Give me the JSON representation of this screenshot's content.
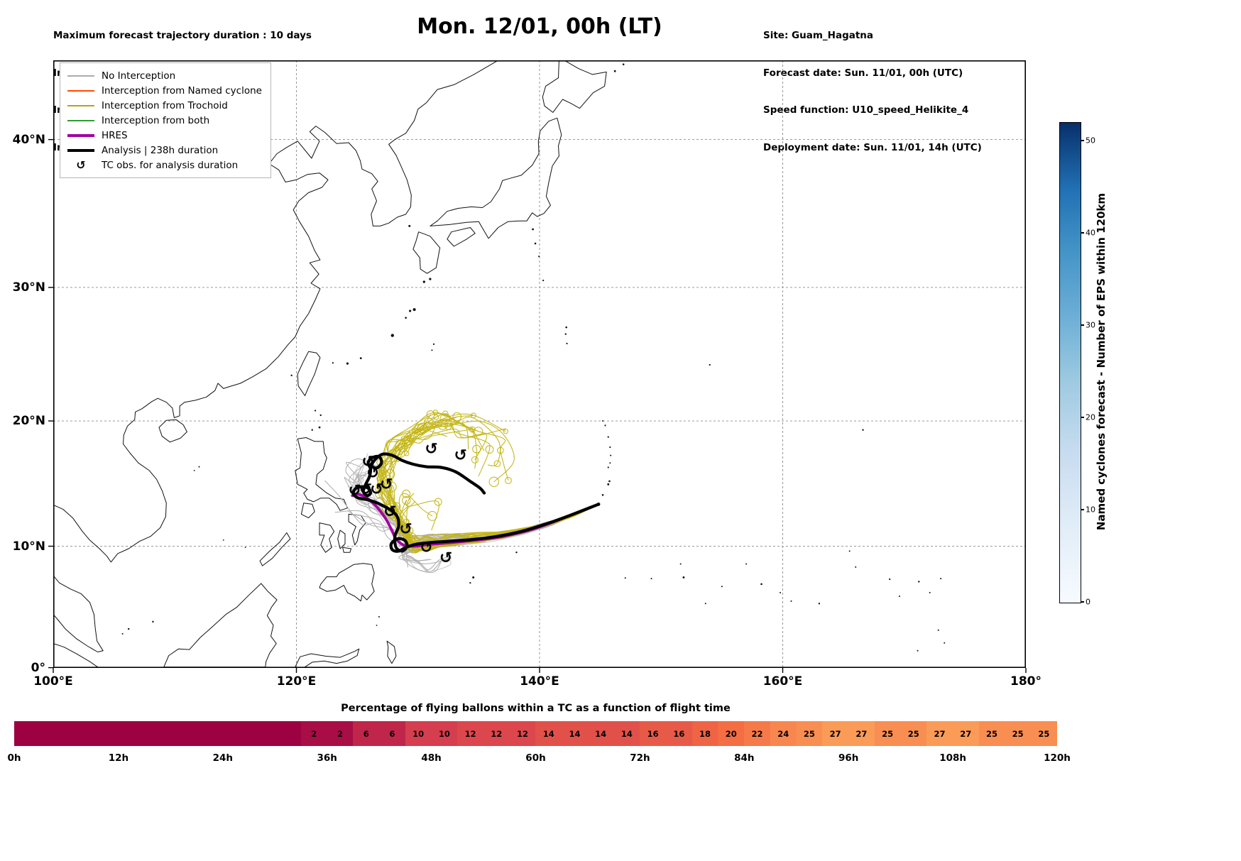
{
  "header": {
    "left_lines": [
      "Maximum forecast trajectory duration : 10 days",
      "Intercept distance: 300km",
      "Intercept RW2 (EPS):  30km/h2",
      "Intercept RW2 (HRES): 30km/h2"
    ],
    "title": "Mon. 12/01, 00h (LT)",
    "right_lines": [
      "Site: Guam_Hagatna",
      "Forecast date: Sun. 11/01, 00h (UTC)",
      "Speed function: U10_speed_Helikite_4",
      "Deployment date: Sun. 11/01, 14h (UTC)"
    ]
  },
  "legend": {
    "items": [
      {
        "label": "No Interception",
        "color": "#ababab",
        "style": "thin"
      },
      {
        "label": "Interception from Named cyclone",
        "color": "#ff4c00",
        "style": "thin"
      },
      {
        "label": "Interception from Trochoid",
        "color": "#b3a514",
        "style": "thin"
      },
      {
        "label": "Interception from both",
        "color": "#2e9e2e",
        "style": "thin"
      },
      {
        "label": "HRES",
        "color": "#a100a1",
        "style": "thick"
      },
      {
        "label": "Analysis | 238h duration",
        "color": "#000000",
        "style": "thick"
      },
      {
        "label": "TC obs. for analysis duration",
        "symbol": "↺",
        "style": "symbol"
      }
    ]
  },
  "axes": {
    "x_ticks": [
      {
        "v": 100,
        "label": "100°E"
      },
      {
        "v": 120,
        "label": "120°E"
      },
      {
        "v": 140,
        "label": "140°E"
      },
      {
        "v": 160,
        "label": "160°E"
      },
      {
        "v": 180,
        "label": "180°"
      }
    ],
    "y_ticks": [
      {
        "v": 0,
        "label": "0°"
      },
      {
        "v": 10,
        "label": "10°N"
      },
      {
        "v": 20,
        "label": "20°N"
      },
      {
        "v": 30,
        "label": "30°N"
      },
      {
        "v": 40,
        "label": "40°N"
      }
    ]
  },
  "colorbar": {
    "title": "Named cyclones forecast - Number of EPS within 120km",
    "ticks": [
      0,
      10,
      20,
      30,
      40,
      50
    ],
    "vmin": 0,
    "vmax": 52,
    "color_low": "#f7fbff",
    "color_high": "#08306b"
  },
  "flight_bar": {
    "title": "Percentage of flying ballons within a TC as a function of flight time",
    "x_ticks": [
      "0h",
      "12h",
      "24h",
      "36h",
      "48h",
      "60h",
      "72h",
      "84h",
      "96h",
      "108h",
      "120h"
    ],
    "scale": [
      {
        "v": 0,
        "c": "#9e0142"
      },
      {
        "v": 10,
        "c": "#d53e4f"
      },
      {
        "v": 20,
        "c": "#f46d43"
      },
      {
        "v": 30,
        "c": "#fdae61"
      }
    ]
  },
  "chart_data": {
    "type": "trajectory-map",
    "projection": "mercator",
    "lon_range": [
      100,
      180
    ],
    "lat_range": [
      0,
      45
    ],
    "grid": true,
    "site": {
      "name": "Guam_Hagatna",
      "lon": 144.85,
      "lat": 13.4
    },
    "analysis_duration_h": 238,
    "analysis_track": [
      [
        144.85,
        13.4
      ],
      [
        142.5,
        12.5
      ],
      [
        140.5,
        11.8
      ],
      [
        138.5,
        11.2
      ],
      [
        136.5,
        10.8
      ],
      [
        134.5,
        10.55
      ],
      [
        132.5,
        10.4
      ],
      [
        131.0,
        10.3
      ],
      [
        129.8,
        10.15
      ],
      [
        129.0,
        9.9
      ],
      [
        128.4,
        9.6
      ],
      [
        127.9,
        9.7
      ],
      [
        127.8,
        10.2
      ],
      [
        128.3,
        10.6
      ],
      [
        128.9,
        10.5
      ],
      [
        129.1,
        10.0
      ],
      [
        128.7,
        9.6
      ],
      [
        128.2,
        9.9
      ],
      [
        128.1,
        10.8
      ],
      [
        128.4,
        11.6
      ],
      [
        128.3,
        12.4
      ],
      [
        127.8,
        12.9
      ],
      [
        127.1,
        13.3
      ],
      [
        126.4,
        13.6
      ],
      [
        125.7,
        13.8
      ],
      [
        125.1,
        13.9
      ],
      [
        124.7,
        14.2
      ],
      [
        124.8,
        14.6
      ],
      [
        125.3,
        14.8
      ],
      [
        125.9,
        14.7
      ],
      [
        126.1,
        14.3
      ],
      [
        125.8,
        14.1
      ],
      [
        125.5,
        14.45
      ],
      [
        125.7,
        15.0
      ],
      [
        126.0,
        15.6
      ],
      [
        126.1,
        16.2
      ],
      [
        125.9,
        16.7
      ],
      [
        126.2,
        17.1
      ],
      [
        126.8,
        17.2
      ],
      [
        127.0,
        16.7
      ],
      [
        126.6,
        16.3
      ],
      [
        126.2,
        16.5
      ],
      [
        126.5,
        17.0
      ],
      [
        127.1,
        17.4
      ],
      [
        127.9,
        17.3
      ],
      [
        128.7,
        16.9
      ],
      [
        129.6,
        16.6
      ],
      [
        130.7,
        16.4
      ],
      [
        131.9,
        16.35
      ],
      [
        133.1,
        16.0
      ],
      [
        134.2,
        15.3
      ],
      [
        135.1,
        14.7
      ],
      [
        135.45,
        14.3
      ]
    ],
    "hres_track": [
      [
        144.85,
        13.4
      ],
      [
        142.0,
        12.3
      ],
      [
        139.5,
        11.4
      ],
      [
        137.0,
        10.8
      ],
      [
        134.8,
        10.5
      ],
      [
        132.8,
        10.3
      ],
      [
        131.0,
        10.15
      ],
      [
        129.7,
        10.0
      ],
      [
        128.8,
        10.1
      ],
      [
        128.2,
        10.6
      ],
      [
        127.8,
        11.4
      ],
      [
        127.3,
        12.3
      ],
      [
        126.6,
        13.2
      ],
      [
        125.8,
        13.9
      ],
      [
        125.1,
        14.2
      ],
      [
        124.6,
        14.1
      ]
    ],
    "tc_obs": [
      [
        124.8,
        14.5
      ],
      [
        125.7,
        14.6
      ],
      [
        126.6,
        14.6
      ],
      [
        127.4,
        15.0
      ],
      [
        131.1,
        17.8
      ],
      [
        133.5,
        17.3
      ],
      [
        127.7,
        12.8
      ],
      [
        129.0,
        11.4
      ],
      [
        130.7,
        9.9
      ],
      [
        132.3,
        9.05
      ],
      [
        126.3,
        15.9
      ],
      [
        125.9,
        16.8
      ]
    ],
    "ensemble_summary": {
      "no_interception": {
        "count": 32,
        "color": "#b0b0b0"
      },
      "trochoid_interception": {
        "count": 24,
        "color": "#c3b516"
      },
      "named_cyclone_interception": {
        "count": 0,
        "color": "#ff4c00"
      },
      "both_interception": {
        "count": 0,
        "color": "#2e9e2e"
      }
    },
    "flight_bar": {
      "type": "heatmap-strip",
      "bin_hours": 3,
      "hours_range": [
        0,
        120
      ],
      "values": [
        null,
        null,
        null,
        null,
        null,
        null,
        null,
        null,
        null,
        null,
        null,
        2,
        2,
        6,
        6,
        10,
        10,
        12,
        12,
        12,
        14,
        14,
        14,
        14,
        16,
        16,
        18,
        20,
        22,
        24,
        25,
        27,
        27,
        25,
        25,
        27,
        27,
        25,
        25,
        25
      ]
    }
  }
}
